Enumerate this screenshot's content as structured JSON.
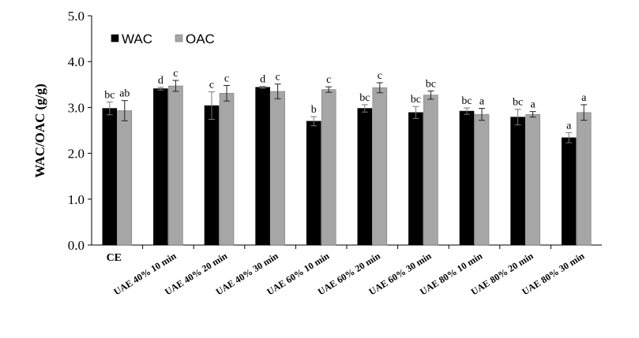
{
  "chart_data": {
    "type": "bar",
    "ylabel": "WAC/OAC (g/g)",
    "xlabel": "",
    "ylim": [
      0,
      5
    ],
    "yticks": [
      "0.0",
      "1.0",
      "2.0",
      "3.0",
      "4.0",
      "5.0"
    ],
    "grid": false,
    "legend_position": "top-left",
    "categories": [
      "CE",
      "UAE 40% 10 min",
      "UAE 40% 20 min",
      "UAE 40% 30 min",
      "UAE 60% 10 min",
      "UAE 60% 20 min",
      "UAE 60% 30 min",
      "UAE 80% 10 min",
      "UAE 80% 20 min",
      "UAE 80% 30 min"
    ],
    "series": [
      {
        "name": "WAC",
        "color": "#000000",
        "values": [
          2.98,
          3.41,
          3.04,
          3.44,
          2.7,
          2.98,
          2.89,
          2.92,
          2.79,
          2.34
        ],
        "errors": [
          0.14,
          0.03,
          0.3,
          0.02,
          0.1,
          0.08,
          0.13,
          0.07,
          0.17,
          0.11
        ],
        "labels": [
          "bc",
          "d",
          "c",
          "d",
          "b",
          "bc",
          "bc",
          "bc",
          "bc",
          "a"
        ]
      },
      {
        "name": "OAC",
        "color": "#a6a6a6",
        "values": [
          2.93,
          3.47,
          3.31,
          3.35,
          3.39,
          3.43,
          3.27,
          2.85,
          2.85,
          2.89
        ],
        "errors": [
          0.22,
          0.12,
          0.17,
          0.16,
          0.06,
          0.11,
          0.09,
          0.13,
          0.06,
          0.17
        ],
        "labels": [
          "ab",
          "c",
          "c",
          "c",
          "c",
          "c",
          "bc",
          "a",
          "a",
          "a"
        ]
      }
    ]
  }
}
